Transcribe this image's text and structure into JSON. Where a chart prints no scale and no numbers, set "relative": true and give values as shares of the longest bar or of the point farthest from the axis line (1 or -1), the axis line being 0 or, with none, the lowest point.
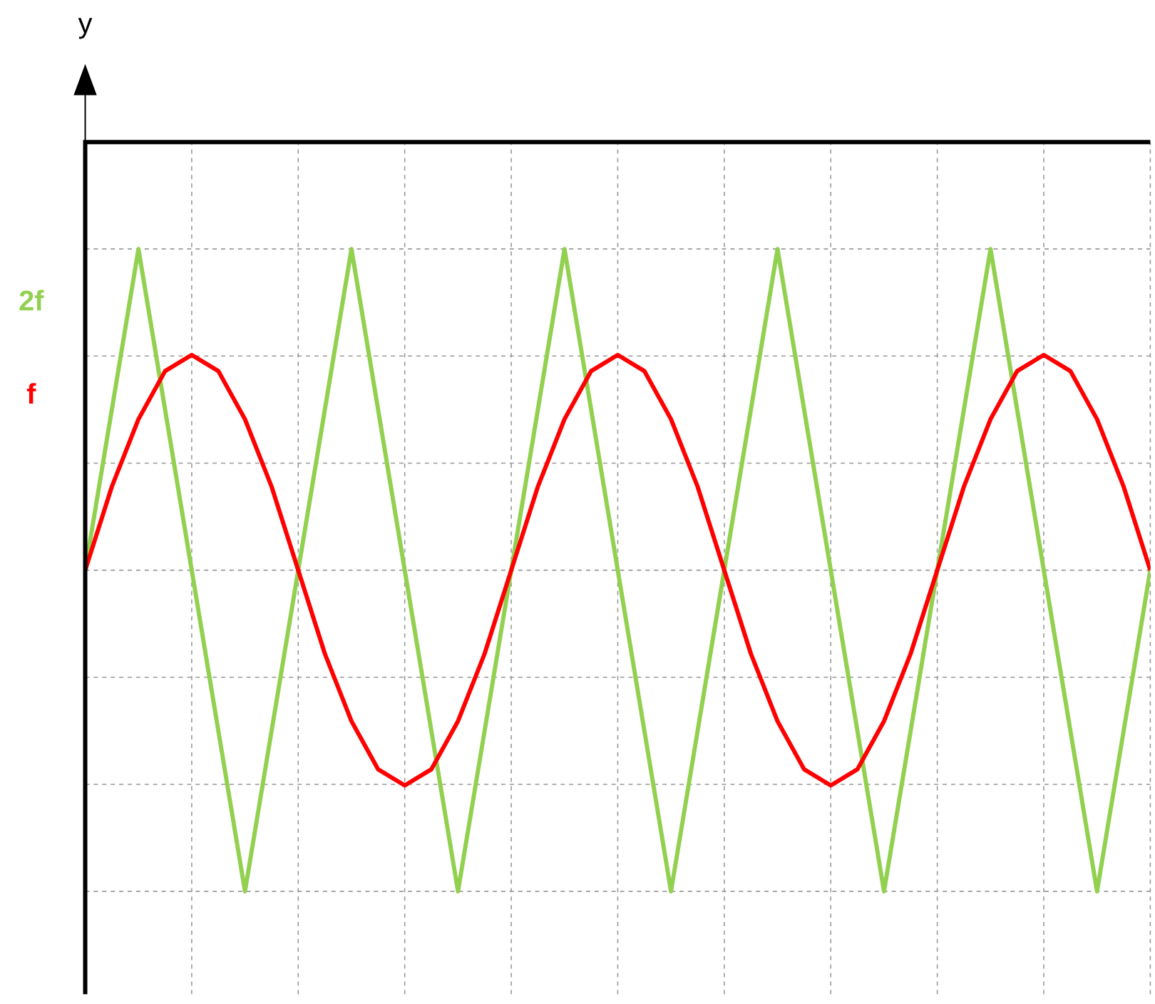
{
  "chart_data": {
    "type": "line",
    "relative": true,
    "annotations": [
      "y"
    ],
    "grid": true,
    "marker": "none",
    "line_style": "solid",
    "categories": [
      null,
      null,
      null,
      null,
      null,
      null,
      null,
      null,
      null,
      null,
      null,
      null,
      null,
      null,
      null,
      null,
      null,
      null,
      null,
      null,
      null,
      null,
      null,
      null,
      null,
      null,
      null,
      null,
      null,
      null,
      null,
      null,
      null,
      null,
      null,
      null,
      null,
      null,
      null,
      null,
      null
    ],
    "series": [
      {
        "name": "2f",
        "color": "#92d050",
        "values": [
          0,
          0.5,
          1,
          0.5,
          0,
          -0.5,
          -1,
          -0.5,
          0,
          0.5,
          1,
          0.5,
          0,
          -0.5,
          -1,
          -0.5,
          0,
          0.5,
          1,
          0.5,
          0,
          -0.5,
          -1,
          -0.5,
          0,
          0.5,
          1,
          0.5,
          0,
          -0.5,
          -1,
          -0.5,
          0,
          0.5,
          1,
          0.5,
          0,
          -0.5,
          -1,
          -0.5,
          0
        ]
      },
      {
        "name": "f",
        "color": "#ff0000",
        "values": [
          0,
          0.26,
          0.47,
          0.62,
          0.67,
          0.62,
          0.47,
          0.26,
          0,
          -0.26,
          -0.47,
          -0.62,
          -0.67,
          -0.62,
          -0.47,
          -0.26,
          0,
          0.26,
          0.47,
          0.62,
          0.67,
          0.62,
          0.47,
          0.26,
          0,
          -0.26,
          -0.47,
          -0.62,
          -0.67,
          -0.62,
          -0.47,
          -0.26,
          0,
          0.26,
          0.47,
          0.62,
          0.67,
          0.62,
          0.47,
          0.26,
          0
        ]
      }
    ]
  }
}
